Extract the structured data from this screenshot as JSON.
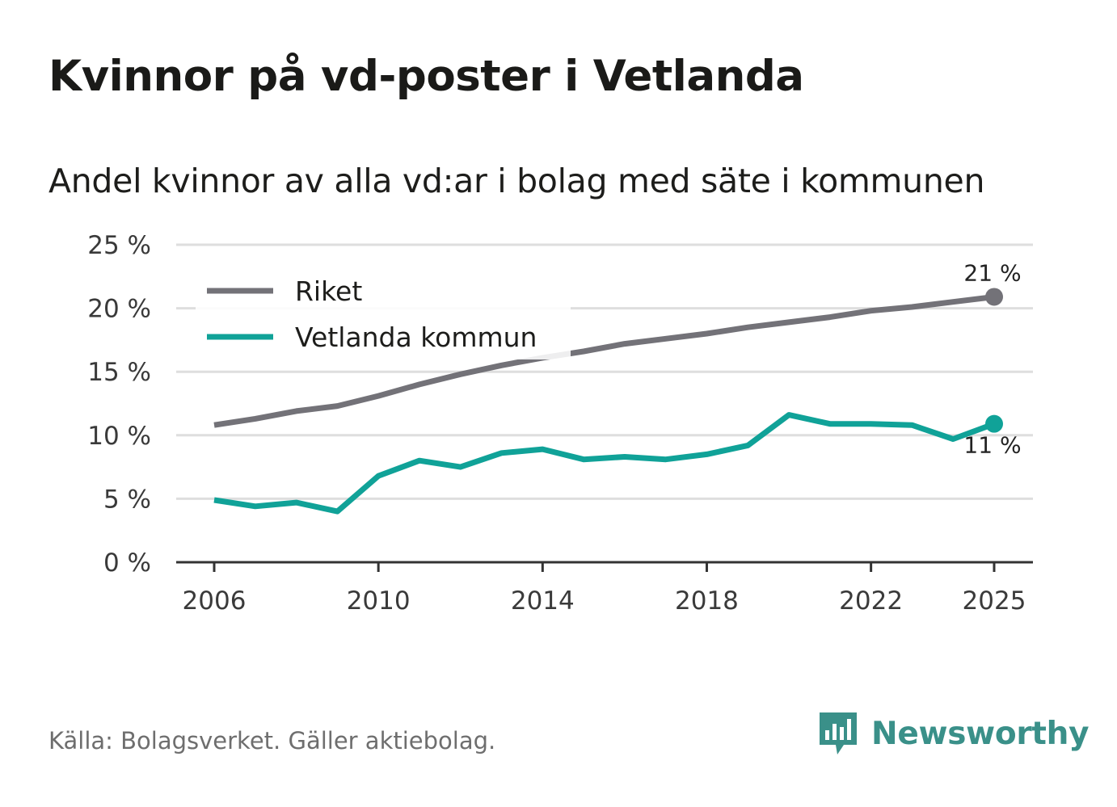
{
  "header": {
    "title": "Kvinnor på vd-poster i Vetlanda",
    "subtitle": "Andel kvinnor av alla vd:ar i bolag med säte i kommunen"
  },
  "footer": {
    "source": "Källa: Bolagsverket. Gäller aktiebolag.",
    "brand": "Newsworthy",
    "brand_icon": "bar-chart-speech-bubble-icon",
    "brand_color": "#3a9089"
  },
  "chart_data": {
    "type": "line",
    "title": "Kvinnor på vd-poster i Vetlanda",
    "subtitle": "Andel kvinnor av alla vd:ar i bolag med säte i kommunen",
    "xlabel": "",
    "ylabel": "",
    "ylim": [
      0,
      25
    ],
    "xlim": [
      2006,
      2025
    ],
    "yticks": [
      0,
      5,
      10,
      15,
      20,
      25
    ],
    "ytick_labels": [
      "0 %",
      "5 %",
      "10 %",
      "15 %",
      "20 %",
      "25 %"
    ],
    "xticks": [
      2006,
      2010,
      2014,
      2018,
      2022,
      2025
    ],
    "xtick_labels": [
      "2006",
      "2010",
      "2014",
      "2018",
      "2022",
      "2025"
    ],
    "grid": true,
    "legend_position": "top-left",
    "x": [
      2006,
      2007,
      2008,
      2009,
      2010,
      2011,
      2012,
      2013,
      2014,
      2015,
      2016,
      2017,
      2018,
      2019,
      2020,
      2021,
      2022,
      2023,
      2024,
      2025
    ],
    "series": [
      {
        "name": "Riket",
        "color": "#737278",
        "values": [
          10.8,
          11.3,
          11.9,
          12.3,
          13.1,
          14.0,
          14.8,
          15.5,
          16.1,
          16.6,
          17.2,
          17.6,
          18.0,
          18.5,
          18.9,
          19.3,
          19.8,
          20.1,
          20.5,
          20.9
        ],
        "end_label": "21 %"
      },
      {
        "name": "Vetlanda kommun",
        "color": "#10a298",
        "values": [
          4.9,
          4.4,
          4.7,
          4.0,
          6.8,
          8.0,
          7.5,
          8.6,
          8.9,
          8.1,
          8.3,
          8.1,
          8.5,
          9.2,
          11.6,
          10.9,
          10.9,
          10.8,
          9.7,
          10.9
        ],
        "end_label": "11 %"
      }
    ]
  }
}
